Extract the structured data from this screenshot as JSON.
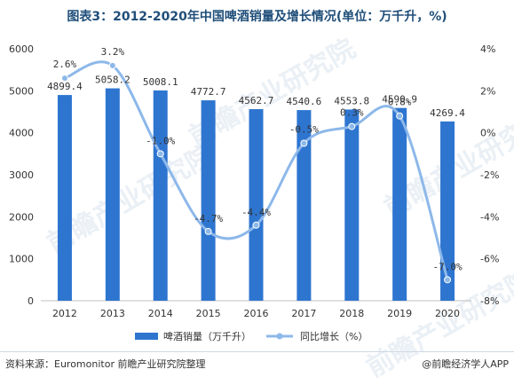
{
  "title": "图表3：2012-2020年中国啤酒销量及增长情况(单位：万千升，%)",
  "footer": {
    "source": "资料来源：Euromonitor 前瞻产业研究院整理",
    "brand": "@前瞻经济学人APP"
  },
  "watermark": "前瞻产业研究院",
  "colors": {
    "bar": "#2e75d0",
    "line": "#8db8ea",
    "title": "#1f4e79"
  },
  "chart_data": {
    "type": "bar",
    "categories": [
      "2012",
      "2013",
      "2014",
      "2015",
      "2016",
      "2017",
      "2018",
      "2019",
      "2020"
    ],
    "series": [
      {
        "name": "啤酒销量（万千升）",
        "type": "bar",
        "axis": "left",
        "values": [
          4899.4,
          5058.2,
          5008.1,
          4772.7,
          4562.7,
          4540.6,
          4553.8,
          4590.9,
          4269.4
        ],
        "labels": [
          "4899.4",
          "5058.2",
          "5008.1",
          "4772.7",
          "4562.7",
          "4540.6",
          "4553.8",
          "4590.9",
          "4269.4"
        ]
      },
      {
        "name": "同比增长（%）",
        "type": "line",
        "axis": "right",
        "values": [
          2.6,
          3.2,
          -1.0,
          -4.7,
          -4.4,
          -0.5,
          0.3,
          0.8,
          -7.0
        ],
        "labels": [
          "2.6%",
          "3.2%",
          "-1.0%",
          "-4.7%",
          "-4.4%",
          "-0.5%",
          "0.3%",
          "0.8%",
          "-7.0%"
        ]
      }
    ],
    "y_left": {
      "lim": [
        0,
        6000
      ],
      "ticks": [
        "0",
        "1000",
        "2000",
        "3000",
        "4000",
        "5000",
        "6000"
      ]
    },
    "y_right": {
      "lim": [
        -8,
        4
      ],
      "ticks": [
        "-8%",
        "-6%",
        "-4%",
        "-2%",
        "0%",
        "2%",
        "4%"
      ]
    },
    "grid": false,
    "legend_position": "bottom"
  }
}
